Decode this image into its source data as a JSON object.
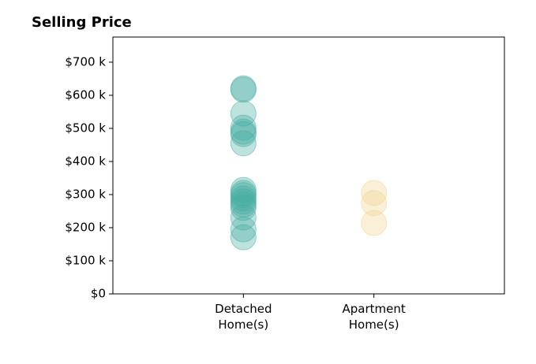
{
  "chart_data": {
    "type": "strip",
    "title": "Selling Price",
    "categories": [
      "Detached\nHome(s)",
      "Apartment\nHome(s)"
    ],
    "colors": [
      "#45ada0",
      "#f0d38c"
    ],
    "values": [
      [
        621000,
        617000,
        545000,
        502000,
        490000,
        483000,
        455000,
        314000,
        305000,
        298000,
        288000,
        279000,
        270000,
        260000,
        231000,
        195000,
        171000
      ],
      [
        305000,
        274000,
        214000
      ]
    ],
    "ylim": [
      0,
      776000
    ],
    "yticks": [
      {
        "value": 0,
        "label": "$0"
      },
      {
        "value": 100000,
        "label": "$100 k"
      },
      {
        "value": 200000,
        "label": "$200 k"
      },
      {
        "value": 300000,
        "label": "$300 k"
      },
      {
        "value": 400000,
        "label": "$400 k"
      },
      {
        "value": 500000,
        "label": "$500 k"
      },
      {
        "value": 600000,
        "label": "$600 k"
      },
      {
        "value": 700000,
        "label": "$700 k"
      }
    ]
  }
}
